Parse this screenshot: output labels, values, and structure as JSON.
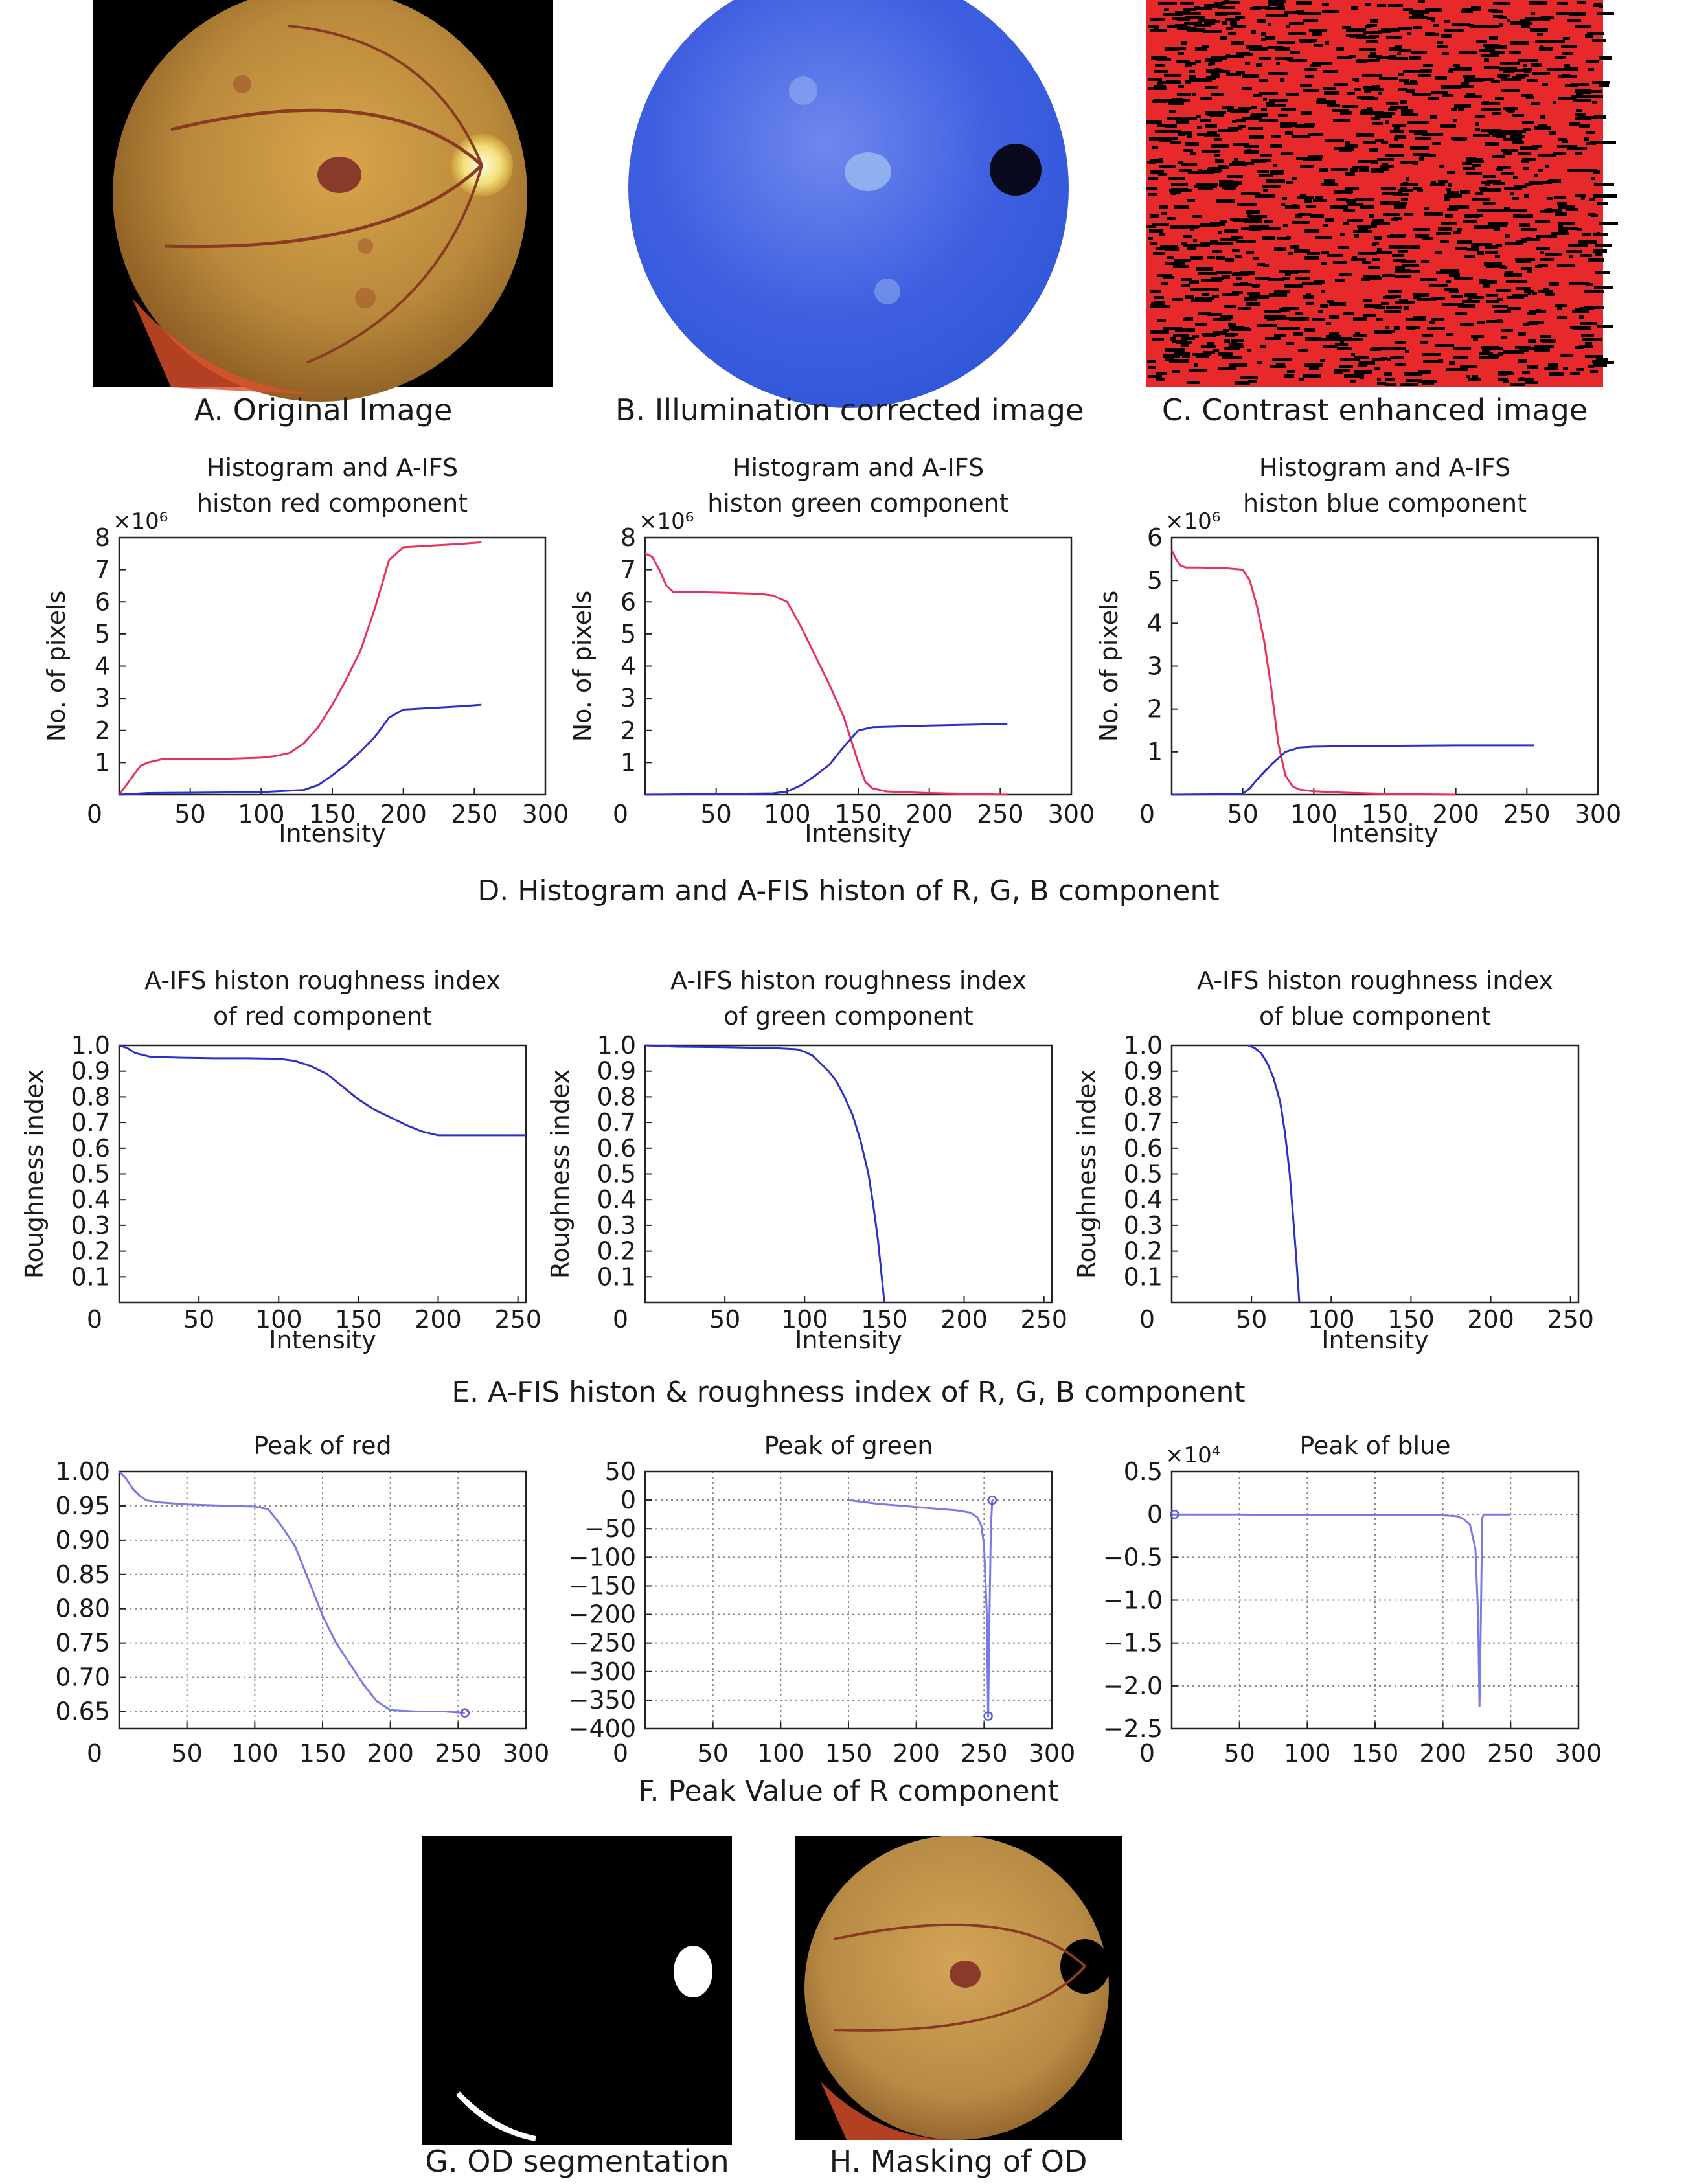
{
  "images": {
    "a_caption": "A. Original Image",
    "b_caption": "B. Illumination corrected image",
    "c_caption": "C. Contrast enhanced image",
    "g_caption": "G. OD segmentation",
    "h_caption": "H. Masking of OD"
  },
  "sections": {
    "d": "D. Histogram and A-FIS histon of R, G, B component",
    "e": "E. A-FIS histon & roughness index of R, G, B component",
    "f": "F. Peak Value of R component"
  },
  "colors": {
    "red_curve": "#e8305a",
    "blue_curve": "#2e2ec8",
    "grid": "#888888"
  },
  "chart_data": [
    {
      "id": "hist_red",
      "type": "line",
      "title": [
        "Histogram and A-IFS",
        "histon red component"
      ],
      "xlabel": "Intensity",
      "ylabel": "No. of pixels",
      "exponent": "×10⁶",
      "xlim": [
        0,
        300
      ],
      "ylim": [
        0,
        8
      ],
      "xticks": [
        "0",
        "50",
        "100",
        "150",
        "200",
        "250",
        "300"
      ],
      "yticks": [
        "1",
        "2",
        "3",
        "4",
        "5",
        "6",
        "7",
        "8"
      ],
      "grid": false,
      "series": [
        {
          "color": "#e8305a",
          "x": [
            0,
            5,
            10,
            15,
            20,
            30,
            50,
            80,
            100,
            110,
            120,
            130,
            140,
            150,
            160,
            170,
            180,
            190,
            200,
            220,
            240,
            255
          ],
          "y": [
            0,
            0.3,
            0.6,
            0.9,
            1.0,
            1.1,
            1.1,
            1.12,
            1.15,
            1.2,
            1.3,
            1.6,
            2.1,
            2.8,
            3.6,
            4.5,
            5.8,
            7.3,
            7.7,
            7.75,
            7.8,
            7.85
          ]
        },
        {
          "color": "#2e2ec8",
          "x": [
            0,
            20,
            50,
            100,
            130,
            140,
            150,
            160,
            170,
            180,
            190,
            200,
            220,
            240,
            255
          ],
          "y": [
            0,
            0.05,
            0.06,
            0.08,
            0.15,
            0.3,
            0.6,
            0.95,
            1.35,
            1.8,
            2.4,
            2.65,
            2.7,
            2.75,
            2.8
          ]
        }
      ]
    },
    {
      "id": "hist_green",
      "type": "line",
      "title": [
        "Histogram and A-IFS",
        "histon green component"
      ],
      "xlabel": "Intensity",
      "ylabel": "No. of pixels",
      "exponent": "×10⁶",
      "xlim": [
        0,
        300
      ],
      "ylim": [
        0,
        8
      ],
      "xticks": [
        "0",
        "50",
        "100",
        "150",
        "200",
        "250",
        "300"
      ],
      "yticks": [
        "1",
        "2",
        "3",
        "4",
        "5",
        "6",
        "7",
        "8"
      ],
      "grid": false,
      "series": [
        {
          "color": "#e8305a",
          "x": [
            0,
            5,
            10,
            15,
            20,
            40,
            60,
            80,
            90,
            100,
            110,
            120,
            130,
            140,
            150,
            155,
            160,
            170,
            200,
            255
          ],
          "y": [
            7.5,
            7.4,
            7.0,
            6.5,
            6.3,
            6.3,
            6.28,
            6.25,
            6.2,
            6.0,
            5.2,
            4.3,
            3.4,
            2.4,
            1.0,
            0.4,
            0.2,
            0.1,
            0.05,
            0
          ]
        },
        {
          "color": "#2e2ec8",
          "x": [
            0,
            50,
            90,
            100,
            110,
            120,
            130,
            140,
            150,
            160,
            200,
            255
          ],
          "y": [
            0,
            0.02,
            0.04,
            0.1,
            0.3,
            0.6,
            0.95,
            1.5,
            2.0,
            2.1,
            2.15,
            2.2
          ]
        }
      ]
    },
    {
      "id": "hist_blue",
      "type": "line",
      "title": [
        "Histogram and A-IFS",
        "histon blue component"
      ],
      "xlabel": "Intensity",
      "ylabel": "No. of pixels",
      "exponent": "×10⁶",
      "xlim": [
        0,
        300
      ],
      "ylim": [
        0,
        6
      ],
      "xticks": [
        "0",
        "50",
        "100",
        "150",
        "200",
        "250",
        "300"
      ],
      "yticks": [
        "1",
        "2",
        "3",
        "4",
        "5",
        "6"
      ],
      "grid": false,
      "series": [
        {
          "color": "#e8305a",
          "x": [
            0,
            3,
            6,
            10,
            20,
            40,
            50,
            55,
            60,
            65,
            70,
            75,
            80,
            85,
            90,
            100,
            120,
            150,
            200
          ],
          "y": [
            5.7,
            5.5,
            5.35,
            5.3,
            5.3,
            5.28,
            5.25,
            5.0,
            4.4,
            3.6,
            2.5,
            1.2,
            0.45,
            0.2,
            0.12,
            0.08,
            0.05,
            0.02,
            0
          ]
        },
        {
          "color": "#2e2ec8",
          "x": [
            0,
            40,
            50,
            55,
            60,
            70,
            80,
            90,
            100,
            120,
            150,
            200,
            255
          ],
          "y": [
            0,
            0.01,
            0.02,
            0.15,
            0.35,
            0.7,
            1.0,
            1.1,
            1.12,
            1.13,
            1.14,
            1.15,
            1.15
          ]
        }
      ]
    },
    {
      "id": "rough_red",
      "type": "line",
      "title": [
        "A-IFS histon roughness index",
        "of red component"
      ],
      "xlabel": "Intensity",
      "ylabel": "Roughness index",
      "xlim": [
        0,
        255
      ],
      "ylim": [
        0,
        1
      ],
      "xticks": [
        "0",
        "50",
        "100",
        "150",
        "200",
        "250"
      ],
      "yticks": [
        "0.1",
        "0.2",
        "0.3",
        "0.4",
        "0.5",
        "0.6",
        "0.7",
        "0.8",
        "0.9",
        "1.0"
      ],
      "grid": false,
      "series": [
        {
          "color": "#2e2ec8",
          "x": [
            0,
            5,
            10,
            20,
            40,
            60,
            80,
            100,
            110,
            120,
            130,
            140,
            150,
            160,
            170,
            180,
            190,
            200,
            220,
            240,
            255
          ],
          "y": [
            1.0,
            0.99,
            0.97,
            0.955,
            0.952,
            0.95,
            0.95,
            0.948,
            0.94,
            0.92,
            0.89,
            0.84,
            0.79,
            0.75,
            0.72,
            0.69,
            0.665,
            0.65,
            0.65,
            0.65,
            0.65
          ]
        }
      ]
    },
    {
      "id": "rough_green",
      "type": "line",
      "title": [
        "A-IFS histon roughness index",
        "of green component"
      ],
      "xlabel": "Intensity",
      "ylabel": "Roughness index",
      "xlim": [
        0,
        255
      ],
      "ylim": [
        0,
        1
      ],
      "xticks": [
        "0",
        "50",
        "100",
        "150",
        "200",
        "250"
      ],
      "yticks": [
        "0.1",
        "0.2",
        "0.3",
        "0.4",
        "0.5",
        "0.6",
        "0.7",
        "0.8",
        "0.9",
        "1.0"
      ],
      "grid": false,
      "series": [
        {
          "color": "#2e2ec8",
          "x": [
            0,
            20,
            50,
            80,
            95,
            100,
            105,
            110,
            115,
            120,
            125,
            130,
            135,
            140,
            143,
            146,
            148,
            150
          ],
          "y": [
            1.0,
            0.995,
            0.993,
            0.99,
            0.985,
            0.975,
            0.96,
            0.93,
            0.9,
            0.86,
            0.8,
            0.73,
            0.63,
            0.5,
            0.38,
            0.24,
            0.12,
            0.0
          ]
        }
      ]
    },
    {
      "id": "rough_blue",
      "type": "line",
      "title": [
        "A-IFS histon roughness index",
        "of blue component"
      ],
      "xlabel": "Intensity",
      "ylabel": "Roughness index",
      "xlim": [
        0,
        255
      ],
      "ylim": [
        0,
        1
      ],
      "xticks": [
        "0",
        "50",
        "100",
        "150",
        "200",
        "250"
      ],
      "yticks": [
        "0.1",
        "0.2",
        "0.3",
        "0.4",
        "0.5",
        "0.6",
        "0.7",
        "0.8",
        "0.9",
        "1.0"
      ],
      "grid": false,
      "series": [
        {
          "color": "#2e2ec8",
          "x": [
            48,
            52,
            56,
            60,
            64,
            68,
            71,
            74,
            76,
            78,
            80
          ],
          "y": [
            1.0,
            0.99,
            0.97,
            0.93,
            0.87,
            0.78,
            0.66,
            0.5,
            0.34,
            0.18,
            0.0
          ]
        }
      ]
    },
    {
      "id": "peak_red",
      "type": "line",
      "title": [
        "Peak of red"
      ],
      "xlabel": "",
      "ylabel": "",
      "xlim": [
        0,
        300
      ],
      "ylim": [
        0.625,
        1.0
      ],
      "xticks": [
        "0",
        "50",
        "100",
        "150",
        "200",
        "250",
        "300"
      ],
      "yticks": [
        "0.65",
        "0.70",
        "0.75",
        "0.80",
        "0.85",
        "0.90",
        "0.95",
        "1.00"
      ],
      "grid": true,
      "series": [
        {
          "color": "#7a7ae6",
          "x": [
            0,
            5,
            10,
            15,
            20,
            30,
            50,
            80,
            100,
            110,
            120,
            130,
            140,
            150,
            160,
            170,
            180,
            190,
            200,
            220,
            240,
            255
          ],
          "y": [
            1.0,
            0.99,
            0.975,
            0.965,
            0.958,
            0.955,
            0.952,
            0.95,
            0.949,
            0.945,
            0.92,
            0.89,
            0.84,
            0.79,
            0.75,
            0.72,
            0.69,
            0.665,
            0.652,
            0.65,
            0.65,
            0.648
          ]
        }
      ],
      "markers": [
        {
          "x": 255,
          "y": 0.648
        }
      ]
    },
    {
      "id": "peak_green",
      "type": "line",
      "title": [
        "Peak of green"
      ],
      "xlabel": "",
      "ylabel": "",
      "xlim": [
        0,
        300
      ],
      "ylim": [
        -400,
        50
      ],
      "xticks": [
        "0",
        "50",
        "100",
        "150",
        "200",
        "250",
        "300"
      ],
      "yticks": [
        "−400",
        "−350",
        "−300",
        "−250",
        "−200",
        "−150",
        "−100",
        "−50",
        "0",
        "50"
      ],
      "grid": true,
      "series": [
        {
          "color": "#7a7ae6",
          "x": [
            150,
            160,
            170,
            180,
            190,
            200,
            210,
            220,
            230,
            240,
            245,
            248,
            250,
            252,
            253,
            254,
            255,
            256
          ],
          "y": [
            0,
            -3,
            -6,
            -8,
            -10,
            -12,
            -14,
            -16,
            -18,
            -22,
            -30,
            -45,
            -80,
            -200,
            -380,
            -200,
            -50,
            0
          ]
        }
      ],
      "markers": [
        {
          "x": 253,
          "y": -378
        },
        {
          "x": 256,
          "y": 0
        }
      ]
    },
    {
      "id": "peak_blue",
      "type": "line",
      "title": [
        "Peak of blue"
      ],
      "xlabel": "",
      "ylabel": "",
      "exponent": "×10⁴",
      "xlim": [
        0,
        300
      ],
      "ylim": [
        -2.5,
        0.5
      ],
      "xticks": [
        "0",
        "50",
        "100",
        "150",
        "200",
        "250",
        "300"
      ],
      "yticks": [
        "−2.5",
        "−2.0",
        "−1.5",
        "−1.0",
        "−0.5",
        "0",
        "0.5"
      ],
      "grid": true,
      "series": [
        {
          "color": "#7a7ae6",
          "x": [
            0,
            50,
            100,
            150,
            200,
            210,
            215,
            220,
            224,
            226,
            227,
            228,
            229,
            230,
            250
          ],
          "y": [
            0,
            0,
            -0.01,
            -0.01,
            -0.01,
            -0.02,
            -0.05,
            -0.12,
            -0.4,
            -1.2,
            -2.25,
            -1.2,
            -0.05,
            0,
            0
          ]
        }
      ],
      "markers": [
        {
          "x": 2,
          "y": 0
        }
      ]
    }
  ]
}
